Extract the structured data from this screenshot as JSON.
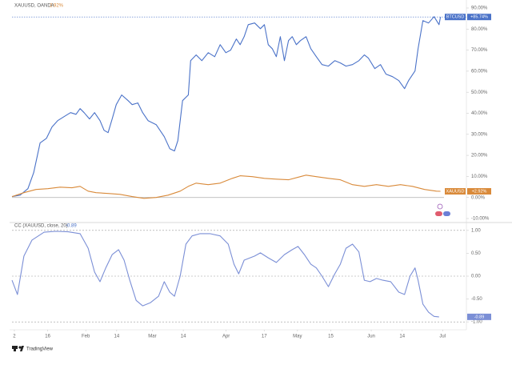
{
  "chart_data": [
    {
      "type": "line",
      "legend": {
        "name": "XAUUSD, OANDA",
        "value": "2.92%"
      },
      "xlim": [
        -1,
        190
      ],
      "ylim": [
        -10,
        90
      ],
      "yticks": [
        {
          "value": 90,
          "label": "90.00%"
        },
        {
          "value": 80,
          "label": "80.00%"
        },
        {
          "value": 70,
          "label": "70.00%"
        },
        {
          "value": 60,
          "label": "60.00%"
        },
        {
          "value": 50,
          "label": "50.00%"
        },
        {
          "value": 40,
          "label": "40.00%"
        },
        {
          "value": 30,
          "label": "30.00%"
        },
        {
          "value": 20,
          "label": "20.00%"
        },
        {
          "value": 10,
          "label": "10.00%"
        },
        {
          "value": 0,
          "label": "0.00%"
        },
        {
          "value": -10,
          "label": "-10.00%"
        }
      ],
      "zero_line": true,
      "series": [
        {
          "name": "BTCUSD",
          "color": "#4a72c8",
          "last_label": "+85.74%",
          "price_line": true,
          "x": [
            -1.0,
            2.4,
            5.7,
            8.1,
            10.8,
            13.5,
            15.8,
            18.2,
            20.9,
            23.6,
            25.9,
            27.6,
            29.3,
            31.6,
            33.7,
            36.0,
            37.7,
            39.4,
            41.1,
            42.8,
            45.1,
            47.8,
            49.5,
            51.9,
            53.9,
            56.2,
            59.6,
            63.0,
            65.3,
            67.3,
            68.7,
            70.7,
            73.1,
            74.1,
            76.4,
            78.8,
            81.5,
            84.2,
            86.5,
            88.9,
            90.9,
            93.3,
            94.9,
            96.6,
            98.3,
            101.0,
            103.4,
            105.1,
            106.7,
            108.4,
            110.1,
            111.8,
            113.5,
            115.2,
            116.8,
            118.5,
            120.2,
            122.6,
            124.6,
            126.9,
            129.3,
            132.0,
            134.7,
            137.0,
            139.4,
            142.1,
            144.8,
            147.1,
            148.8,
            151.5,
            153.9,
            156.2,
            158.9,
            161.6,
            164.0,
            165.7,
            168.4,
            169.7,
            171.7,
            174.1,
            176.4,
            178.5,
            179.1
          ],
          "values": [
            0.4,
            1.1,
            4.2,
            11.8,
            25.9,
            28.1,
            33.5,
            36.5,
            38.4,
            40.3,
            39.5,
            42.2,
            40.3,
            37.3,
            40.3,
            36.5,
            31.9,
            30.8,
            37.3,
            44.1,
            48.7,
            46.0,
            44.1,
            44.9,
            40.3,
            36.5,
            34.6,
            28.9,
            23.2,
            22.1,
            27.0,
            46.0,
            48.7,
            65.0,
            67.7,
            65.0,
            68.8,
            66.9,
            72.6,
            68.8,
            70.0,
            75.3,
            72.6,
            76.4,
            82.1,
            82.9,
            80.2,
            82.1,
            72.6,
            70.7,
            66.9,
            76.4,
            65.0,
            74.5,
            76.4,
            72.6,
            74.5,
            76.4,
            70.7,
            66.9,
            63.1,
            62.4,
            65.0,
            63.9,
            62.4,
            63.1,
            65.0,
            67.7,
            66.2,
            61.2,
            63.1,
            58.6,
            57.4,
            55.5,
            51.7,
            55.5,
            60.1,
            70.7,
            84.0,
            82.9,
            85.9,
            82.1,
            85.74
          ]
        },
        {
          "name": "XAUUSD",
          "color": "#d98a3a",
          "last_label": "+2.92%",
          "x": [
            -1.0,
            4.0,
            9.1,
            14.1,
            19.2,
            24.2,
            27.6,
            31.0,
            34.3,
            39.4,
            44.4,
            49.5,
            54.5,
            59.6,
            64.6,
            69.7,
            73.1,
            76.4,
            81.5,
            86.5,
            91.6,
            94.9,
            100.0,
            105.1,
            110.1,
            115.2,
            120.2,
            122.6,
            126.9,
            132.0,
            137.0,
            142.1,
            147.1,
            152.2,
            157.2,
            162.3,
            167.3,
            172.4,
            177.4,
            179.1
          ],
          "values": [
            0.4,
            2.3,
            3.8,
            4.2,
            4.9,
            4.6,
            5.3,
            3.0,
            2.3,
            1.9,
            1.5,
            0.4,
            -0.4,
            0.0,
            1.1,
            3.0,
            5.3,
            6.8,
            6.1,
            6.8,
            9.1,
            10.3,
            9.9,
            9.1,
            8.7,
            8.4,
            9.9,
            10.6,
            9.9,
            9.1,
            8.4,
            6.1,
            5.3,
            6.1,
            5.3,
            6.1,
            5.3,
            3.8,
            3.0,
            2.92
          ]
        }
      ]
    },
    {
      "type": "line",
      "title": "CC (XAUUSD, close, 20)",
      "title_value": "-0.89",
      "xlim": [
        -1,
        190
      ],
      "xticks": [
        {
          "value": 0,
          "label": "2"
        },
        {
          "value": 14,
          "label": "16"
        },
        {
          "value": 30,
          "label": "Feb"
        },
        {
          "value": 43,
          "label": "14"
        },
        {
          "value": 58,
          "label": "Mar"
        },
        {
          "value": 71,
          "label": "14"
        },
        {
          "value": 89,
          "label": "Apr"
        },
        {
          "value": 105,
          "label": "17"
        },
        {
          "value": 119,
          "label": "May"
        },
        {
          "value": 133,
          "label": "15"
        },
        {
          "value": 150,
          "label": "Jun"
        },
        {
          "value": 163,
          "label": "14"
        },
        {
          "value": 180,
          "label": "Jul"
        }
      ],
      "ylim": [
        -1.05,
        1.05
      ],
      "yticks": [
        {
          "value": 1,
          "label": "1.00"
        },
        {
          "value": 0.5,
          "label": "0.50"
        },
        {
          "value": 0,
          "label": "0.00"
        },
        {
          "value": -0.5,
          "label": "-0.50"
        },
        {
          "value": -1,
          "label": "-1.00"
        }
      ],
      "hlines": [
        1,
        0,
        -1
      ],
      "series": [
        {
          "color": "#7b8fd6",
          "last_label": "-0.89",
          "x": [
            -1.0,
            1.3,
            4.0,
            7.4,
            12.5,
            17.5,
            22.6,
            27.6,
            31.0,
            33.7,
            36.0,
            38.4,
            41.1,
            43.8,
            46.1,
            48.5,
            51.2,
            53.9,
            57.2,
            60.6,
            63.0,
            65.3,
            67.3,
            69.7,
            72.1,
            74.7,
            78.1,
            82.2,
            86.5,
            89.9,
            92.3,
            94.3,
            96.6,
            101.0,
            103.4,
            106.7,
            110.1,
            113.5,
            116.8,
            119.2,
            121.9,
            124.6,
            126.9,
            129.3,
            132.0,
            134.7,
            137.0,
            139.4,
            142.1,
            144.8,
            147.1,
            149.5,
            152.2,
            154.9,
            158.2,
            161.6,
            164.0,
            166.3,
            168.4,
            169.7,
            171.7,
            174.1,
            176.4,
            178.5
          ],
          "values": [
            -0.09,
            -0.4,
            0.44,
            0.79,
            0.96,
            0.98,
            0.97,
            0.93,
            0.61,
            0.09,
            -0.12,
            0.18,
            0.47,
            0.58,
            0.35,
            -0.09,
            -0.53,
            -0.65,
            -0.58,
            -0.44,
            -0.12,
            -0.35,
            -0.44,
            0.0,
            0.7,
            0.88,
            0.93,
            0.93,
            0.88,
            0.7,
            0.26,
            0.05,
            0.35,
            0.44,
            0.51,
            0.4,
            0.3,
            0.47,
            0.58,
            0.65,
            0.47,
            0.26,
            0.18,
            0.0,
            -0.23,
            0.05,
            0.26,
            0.61,
            0.7,
            0.53,
            -0.09,
            -0.12,
            -0.05,
            -0.09,
            -0.12,
            -0.35,
            -0.4,
            0.0,
            0.18,
            -0.09,
            -0.61,
            -0.79,
            -0.88,
            -0.89
          ]
        }
      ]
    }
  ],
  "footer": {
    "brand": "TradingView"
  }
}
